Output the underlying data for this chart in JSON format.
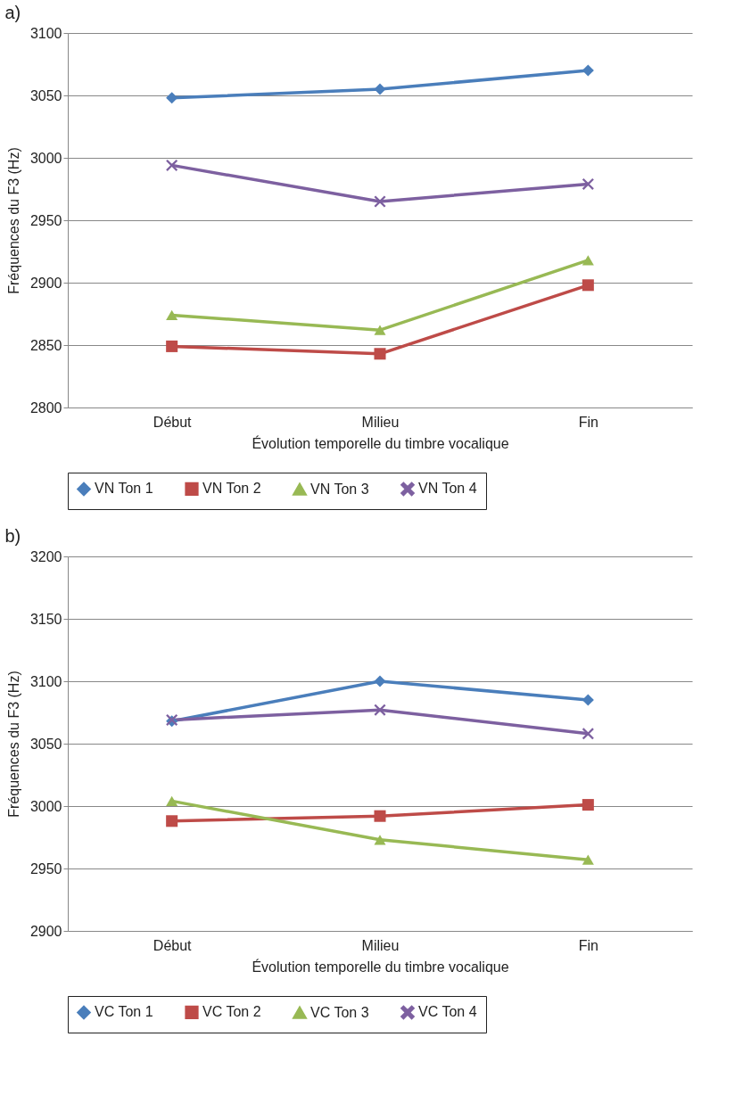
{
  "chart_data": [
    {
      "type": "line",
      "title": "a)",
      "xlabel": "Évolution temporelle du timbre vocalique",
      "ylabel": "Fréquences du F3 (Hz)",
      "categories": [
        "Début",
        "Milieu",
        "Fin"
      ],
      "ylim": [
        2800,
        3100
      ],
      "yticks": [
        2800,
        2850,
        2900,
        2950,
        3000,
        3050,
        3100
      ],
      "grid": "y",
      "legend": "bottom",
      "series": [
        {
          "name": "VN Ton 1",
          "color": "#4a7ebb",
          "marker": "diamond",
          "values": [
            3048,
            3055,
            3070
          ]
        },
        {
          "name": "VN Ton 2",
          "color": "#be4b48",
          "marker": "square",
          "values": [
            2849,
            2843,
            2898
          ]
        },
        {
          "name": "VN Ton 3",
          "color": "#98b954",
          "marker": "triangle",
          "values": [
            2874,
            2862,
            2918
          ]
        },
        {
          "name": "VN Ton 4",
          "color": "#7d60a0",
          "marker": "cross",
          "values": [
            2994,
            2965,
            2979
          ]
        }
      ]
    },
    {
      "type": "line",
      "title": "b)",
      "xlabel": "Évolution temporelle du timbre vocalique",
      "ylabel": "Fréquences du F3 (Hz)",
      "categories": [
        "Début",
        "Milieu",
        "Fin"
      ],
      "ylim": [
        2900,
        3200
      ],
      "yticks": [
        2900,
        2950,
        3000,
        3050,
        3100,
        3150,
        3200
      ],
      "grid": "y",
      "legend": "bottom",
      "series": [
        {
          "name": "VC Ton 1",
          "color": "#4a7ebb",
          "marker": "diamond",
          "values": [
            3068,
            3100,
            3085
          ]
        },
        {
          "name": "VC Ton 2",
          "color": "#be4b48",
          "marker": "square",
          "values": [
            2988,
            2992,
            3001
          ]
        },
        {
          "name": "VC Ton 3",
          "color": "#98b954",
          "marker": "triangle",
          "values": [
            3004,
            2973,
            2957
          ]
        },
        {
          "name": "VC Ton 4",
          "color": "#7d60a0",
          "marker": "cross",
          "values": [
            3069,
            3077,
            3058
          ]
        }
      ]
    }
  ]
}
